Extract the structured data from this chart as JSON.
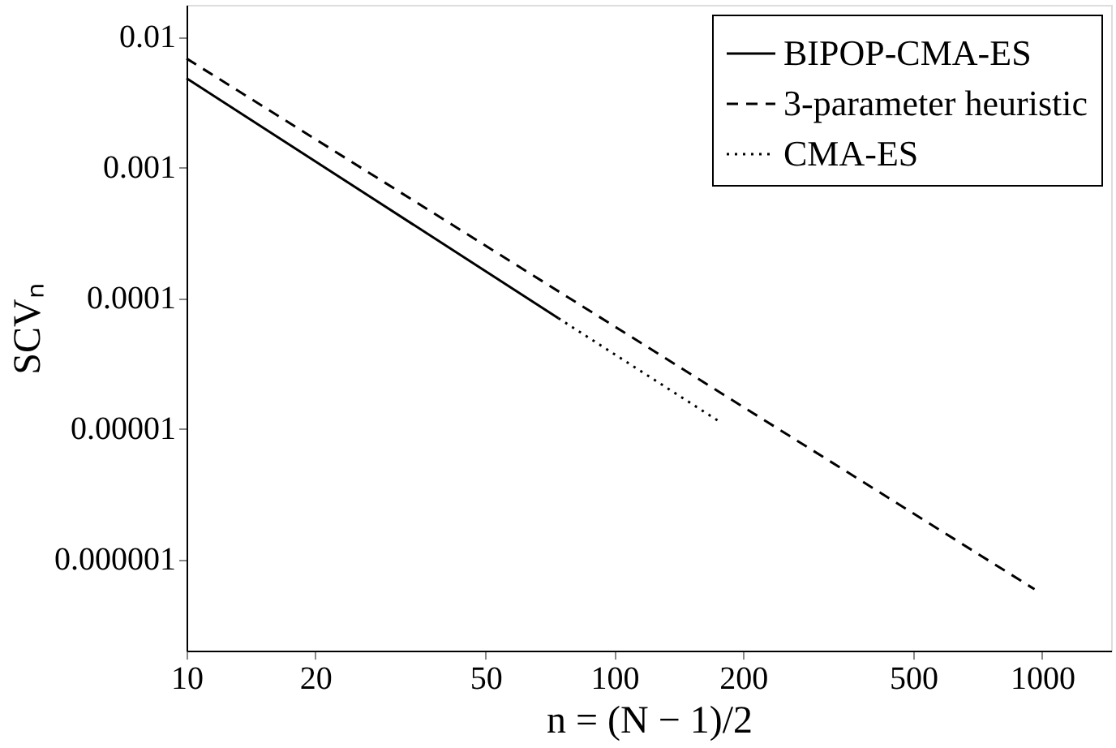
{
  "chart_data": {
    "type": "line",
    "xlabel": "n = (N − 1)/2",
    "ylabel": "SCVₙ",
    "log": "xy",
    "grid": false,
    "legend": "top right",
    "xlim": [
      10,
      1450
    ],
    "xticks": [
      10,
      20,
      50,
      100,
      200,
      500,
      1000
    ],
    "ylim": [
      2e-07,
      0.0175
    ],
    "yticks": [
      {
        "value": 0.01,
        "label": "0.01"
      },
      {
        "value": 0.001,
        "label": "0.001"
      },
      {
        "value": 0.0001,
        "label": "0.0001"
      },
      {
        "value": 1e-05,
        "label": "0.00001"
      },
      {
        "value": 1e-06,
        "label": "0.000001"
      }
    ],
    "series": [
      {
        "name": "BIPOP-CMA-ES",
        "color": "#000000",
        "line_style": "solid",
        "x": [
          10,
          74
        ],
        "values": [
          0.0048,
          7e-05
        ]
      },
      {
        "name": "3-parameter heuristic",
        "color": "#000000",
        "line_style": "dashed",
        "x": [
          10,
          960
        ],
        "values": [
          0.0068,
          5.9e-07
        ]
      },
      {
        "name": "CMA-ES",
        "color": "#000000",
        "line_style": "dotted",
        "x": [
          74,
          177
        ],
        "values": [
          7e-05,
          1.12e-05
        ]
      }
    ]
  }
}
